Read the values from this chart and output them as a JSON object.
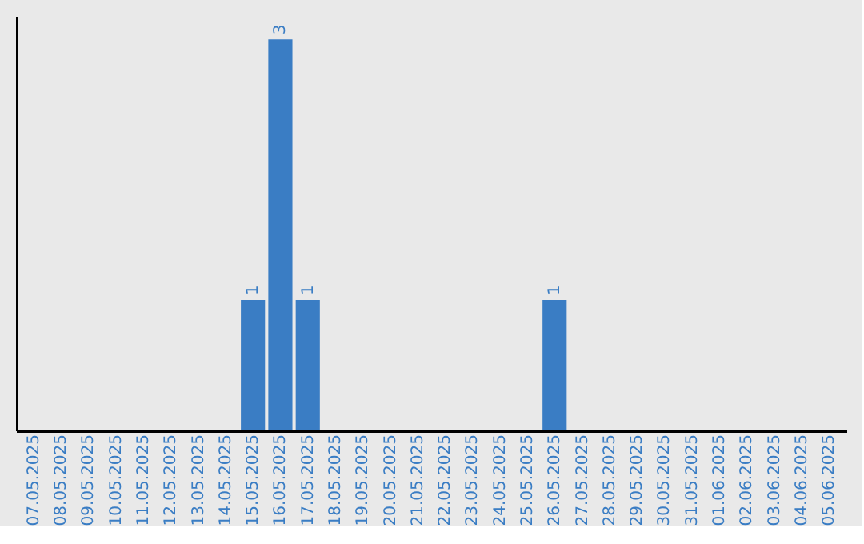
{
  "chart_data": {
    "type": "bar",
    "categories": [
      "07.05.2025",
      "08.05.2025",
      "09.05.2025",
      "10.05.2025",
      "11.05.2025",
      "12.05.2025",
      "13.05.2025",
      "14.05.2025",
      "15.05.2025",
      "16.05.2025",
      "17.05.2025",
      "18.05.2025",
      "19.05.2025",
      "20.05.2025",
      "21.05.2025",
      "22.05.2025",
      "23.05.2025",
      "24.05.2025",
      "25.05.2025",
      "26.05.2025",
      "27.05.2025",
      "28.05.2025",
      "29.05.2025",
      "30.05.2025",
      "31.05.2025",
      "01.06.2025",
      "02.06.2025",
      "03.06.2025",
      "04.06.2025",
      "05.06.2025"
    ],
    "values": [
      0,
      0,
      0,
      0,
      0,
      0,
      0,
      0,
      1,
      3,
      1,
      0,
      0,
      0,
      0,
      0,
      0,
      0,
      0,
      1,
      0,
      0,
      0,
      0,
      0,
      0,
      0,
      0,
      0,
      0
    ],
    "value_labels": [
      null,
      null,
      null,
      null,
      null,
      null,
      null,
      null,
      "1",
      "3",
      "1",
      null,
      null,
      null,
      null,
      null,
      null,
      null,
      null,
      "1",
      null,
      null,
      null,
      null,
      null,
      null,
      null,
      null,
      null,
      null
    ],
    "color": "#3a7dc4",
    "tick_labels": "x",
    "grid": false
  }
}
